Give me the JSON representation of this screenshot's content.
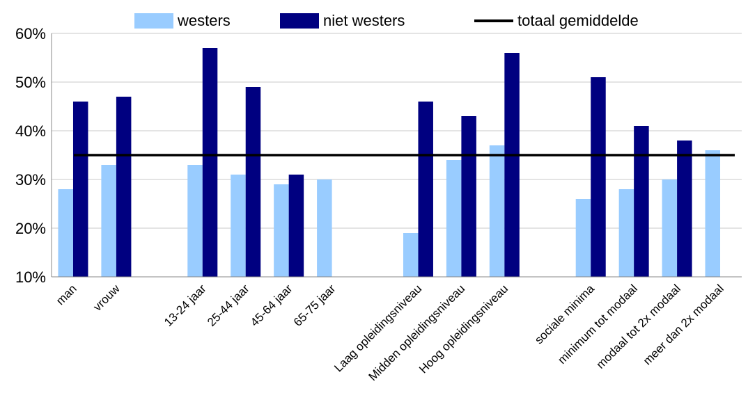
{
  "colors": {
    "westers": "#99ccff",
    "niet_westers": "#000080",
    "average": "#000000",
    "grid": "#c8c8c8",
    "axis": "#888888"
  },
  "legend": {
    "westers": "westers",
    "niet_westers": "niet westers",
    "average": "totaal gemiddelde"
  },
  "chart_data": {
    "type": "bar",
    "title": "",
    "xlabel": "",
    "ylabel": "",
    "ylim": [
      10,
      60
    ],
    "yticks": [
      10,
      20,
      30,
      40,
      50,
      60
    ],
    "ytick_labels": [
      "10%",
      "20%",
      "30%",
      "40%",
      "50%",
      "60%"
    ],
    "grid": true,
    "legend_position": "top",
    "categories": [
      "man",
      "vrouw",
      "",
      "13-24 jaar",
      "25-44 jaar",
      "45-64 jaar",
      "65-75 jaar",
      "",
      "Laag opleidingsniveau",
      "Midden opleidingsniveau",
      "Hoog opleidingsniveau",
      "",
      "sociale minima",
      "minimum tot modaal",
      "modaal tot 2x modaal",
      "meer dan 2x modaal"
    ],
    "series": [
      {
        "name": "westers",
        "values": [
          28,
          33,
          null,
          33,
          31,
          29,
          30,
          null,
          19,
          34,
          37,
          null,
          26,
          28,
          30,
          36
        ]
      },
      {
        "name": "niet westers",
        "values": [
          46,
          47,
          null,
          57,
          49,
          31,
          null,
          null,
          46,
          43,
          56,
          null,
          51,
          41,
          38,
          null
        ]
      }
    ],
    "reference_line": {
      "name": "totaal gemiddelde",
      "value": 35
    }
  }
}
